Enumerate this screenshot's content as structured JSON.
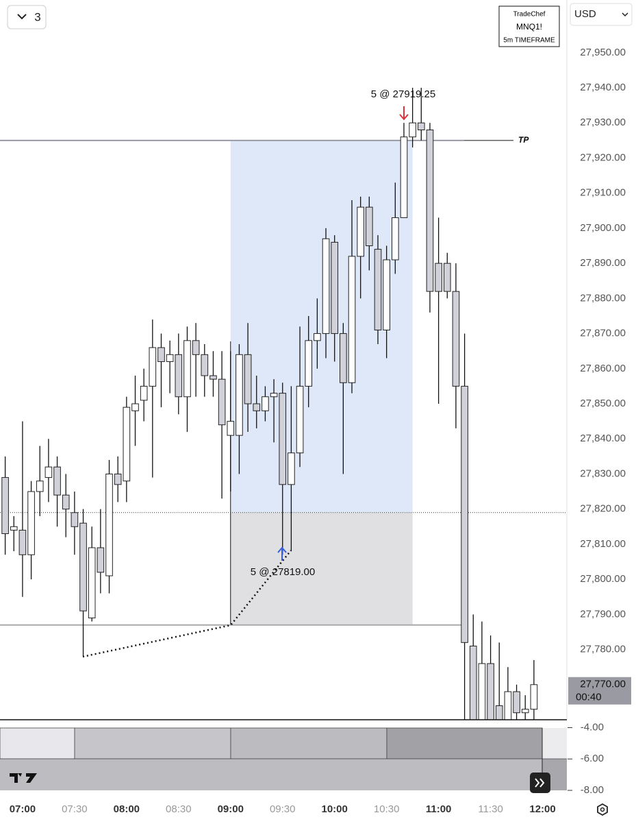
{
  "ui": {
    "layout_count": "3",
    "info_box": [
      "TradeChef",
      "MNQ1!",
      "5m TIMEFRAME"
    ],
    "currency": "USD",
    "countdown": "00:40",
    "tp_label": "TP"
  },
  "chart_data": {
    "type": "candlestick",
    "x": [
      410,
      415,
      420,
      425,
      430,
      435,
      440,
      445,
      450,
      455,
      460,
      465,
      470,
      475,
      480,
      485,
      490,
      495,
      500,
      505,
      510,
      515,
      520,
      525,
      530,
      535,
      540,
      545,
      550,
      555,
      560,
      565,
      570,
      575,
      580,
      585,
      590,
      595,
      600,
      605,
      610,
      615,
      620,
      625,
      630,
      635,
      640,
      645,
      650,
      655,
      660,
      665,
      670,
      675,
      680,
      685,
      690,
      695,
      700,
      705,
      710,
      715
    ],
    "open": [
      27829,
      27814,
      27814,
      27807,
      27825,
      27829,
      27832,
      27824,
      27819,
      27816,
      27789,
      27809,
      27801,
      27830,
      27828,
      27848,
      27851,
      27855,
      27866,
      27862,
      27864,
      27852,
      27868,
      27864,
      27858,
      27857,
      27841,
      27841,
      27864,
      27850,
      27848,
      27852,
      27853,
      27827,
      27836,
      27855,
      27868,
      27870,
      27896,
      27870,
      27856,
      27892,
      27906,
      27894,
      27871,
      27891,
      27903,
      27926,
      27930,
      27928,
      27890,
      27890,
      27882,
      27855,
      27781,
      27760,
      27776,
      27764,
      27760,
      27768,
      27762,
      27763
    ],
    "high": [
      27835,
      27818,
      27845,
      27828,
      27838,
      27840,
      27835,
      27830,
      27825,
      27820,
      27815,
      27820,
      27834,
      27835,
      27852,
      27858,
      27860,
      27874,
      27870,
      27868,
      27870,
      27872,
      27873,
      27867,
      27865,
      27865,
      27865,
      27867,
      27873,
      27858,
      27855,
      27857,
      27856,
      27855,
      27872,
      27875,
      27880,
      27900,
      27898,
      27873,
      27908,
      27909,
      27909,
      27898,
      27895,
      27913,
      27930,
      27940,
      27940,
      27930,
      27903,
      27893,
      27890,
      27870,
      27790,
      27788,
      27784,
      27782,
      27775,
      27770,
      27767,
      27777
    ],
    "low": [
      27807,
      27808,
      27795,
      27800,
      27818,
      27822,
      27815,
      27812,
      27807,
      27778,
      27788,
      27796,
      27796,
      27822,
      27822,
      27838,
      27845,
      27829,
      27849,
      27853,
      27847,
      27842,
      27852,
      27852,
      27852,
      27823,
      27825,
      27830,
      27842,
      27843,
      27845,
      27839,
      27807,
      27808,
      27832,
      27849,
      27860,
      27863,
      27862,
      27830,
      27853,
      27880,
      27888,
      27867,
      27863,
      27887,
      27903,
      27923,
      27925,
      27876,
      27850,
      27880,
      27843,
      27760,
      27760,
      27760,
      27760,
      27760,
      27760,
      27760,
      27760,
      27760
    ],
    "close": [
      27813,
      27815,
      27807,
      27825,
      27828,
      27832,
      27824,
      27820,
      27815,
      27791,
      27809,
      27802,
      27830,
      27827,
      27849,
      27850,
      27855,
      27866,
      27862,
      27864,
      27852,
      27868,
      27864,
      27858,
      27857,
      27844,
      27845,
      27864,
      27850,
      27848,
      27852,
      27853,
      27827,
      27836,
      27855,
      27868,
      27870,
      27897,
      27870,
      27856,
      27892,
      27906,
      27895,
      27871,
      27891,
      27903,
      27926,
      27930,
      27928,
      27882,
      27882,
      27882,
      27855,
      27782,
      27760,
      27776,
      27760,
      27760,
      27768,
      27762,
      27763,
      27770
    ],
    "up_color": "#ffffff",
    "down_color": "#d1d1d9",
    "xlim": [
      407,
      734
    ],
    "ylim": [
      27760,
      27965
    ],
    "xticks": [
      {
        "value": 420,
        "label": "07:00"
      },
      {
        "value": 450,
        "label": "07:30"
      },
      {
        "value": 480,
        "label": "08:00"
      },
      {
        "value": 510,
        "label": "08:30"
      },
      {
        "value": 540,
        "label": "09:00"
      },
      {
        "value": 570,
        "label": "09:30"
      },
      {
        "value": 600,
        "label": "10:00"
      },
      {
        "value": 630,
        "label": "10:30"
      },
      {
        "value": 660,
        "label": "11:00"
      },
      {
        "value": 690,
        "label": "11:30"
      },
      {
        "value": 720,
        "label": "12:00"
      }
    ],
    "yticks": [
      {
        "value": 27780,
        "label": "27,780.00"
      },
      {
        "value": 27790,
        "label": "27,790.00"
      },
      {
        "value": 27800,
        "label": "27,800.00"
      },
      {
        "value": 27810,
        "label": "27,810.00"
      },
      {
        "value": 27820,
        "label": "27,820.00"
      },
      {
        "value": 27830,
        "label": "27,830.00"
      },
      {
        "value": 27840,
        "label": "27,840.00"
      },
      {
        "value": 27850,
        "label": "27,850.00"
      },
      {
        "value": 27860,
        "label": "27,860.00"
      },
      {
        "value": 27870,
        "label": "27,870.00"
      },
      {
        "value": 27880,
        "label": "27,880.00"
      },
      {
        "value": 27890,
        "label": "27,890.00"
      },
      {
        "value": 27900,
        "label": "27,900.00"
      },
      {
        "value": 27910,
        "label": "27,910.00"
      },
      {
        "value": 27920,
        "label": "27,920.00"
      },
      {
        "value": 27930,
        "label": "27,930.00"
      },
      {
        "value": 27940,
        "label": "27,940.00"
      },
      {
        "value": 27950,
        "label": "27,950.00"
      }
    ],
    "last_price": {
      "value": 27770,
      "label": "27,770.00"
    },
    "position": {
      "entry": 27819,
      "target": 27925,
      "stop": 27787,
      "start": 540,
      "end": 645
    },
    "trades": [
      {
        "label": "5 @ 27919.25"
      },
      {
        "label": "5 @ 27819.00"
      }
    ],
    "indicator": {
      "ylim": [
        -3.5,
        -8.0
      ],
      "yticks": [
        {
          "value": -4,
          "label": "-4.00"
        },
        {
          "value": -6,
          "label": "-6.00"
        },
        {
          "value": -8,
          "label": "-8.00"
        }
      ]
    }
  }
}
